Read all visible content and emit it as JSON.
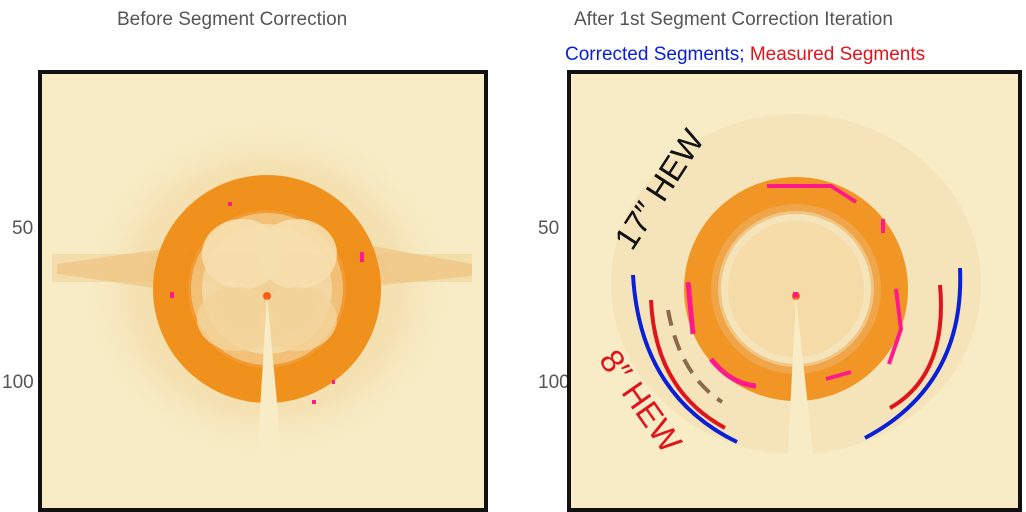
{
  "left_panel": {
    "title": "Before Segment Correction",
    "y_ticks": [
      "50",
      "100"
    ]
  },
  "right_panel": {
    "title": "After 1st Segment Correction Iteration",
    "legend": {
      "corrected": "Corrected Segments",
      "separator": ";",
      "measured": "Measured Segments"
    },
    "annotations": {
      "hew_outer": "17″ HEW",
      "hew_inner": "8″ HEW"
    },
    "y_ticks": [
      "50",
      "100"
    ]
  },
  "colors": {
    "background": "#f7ecc6",
    "ring": "#f08a10",
    "hot_pixels": "#ff1a8c",
    "corrected_segments": "#0a20d8",
    "measured_segments": "#e0141c",
    "dashed_arc": "#8a6a4a",
    "frame": "#111111"
  }
}
